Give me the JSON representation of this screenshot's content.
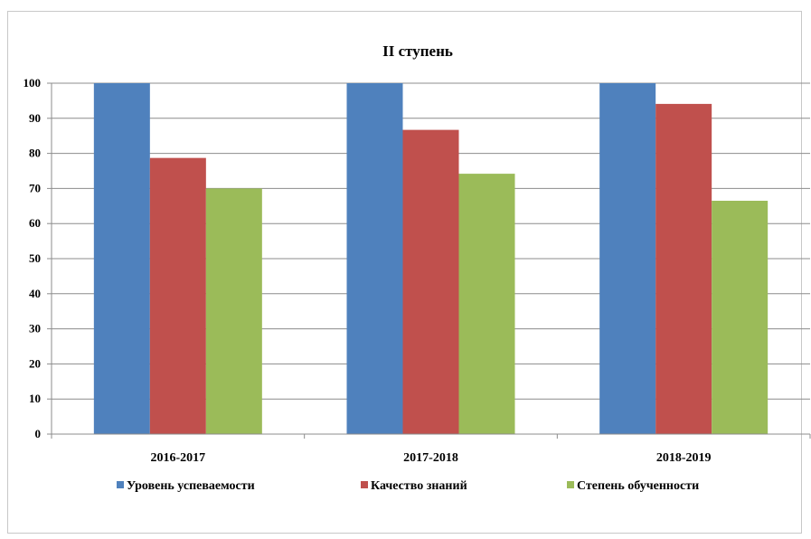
{
  "chart_data": {
    "type": "bar",
    "title": "II  ступень",
    "xlabel": "",
    "ylabel": "",
    "categories": [
      "2016-2017",
      "2017-2018",
      "2018-2019"
    ],
    "series": [
      {
        "name": "Уровень успеваемости",
        "color": "#4F81BD",
        "values": [
          100,
          100,
          100
        ]
      },
      {
        "name": "Качество знаний",
        "color": "#C0504D",
        "values": [
          78.7,
          86.7,
          94.1
        ]
      },
      {
        "name": "Степень обученности",
        "color": "#9BBB59",
        "values": [
          70,
          74.2,
          66.5
        ]
      }
    ],
    "ylim": [
      0,
      100
    ],
    "yticks": [
      0,
      10,
      20,
      30,
      40,
      50,
      60,
      70,
      80,
      90,
      100
    ],
    "grid": true,
    "legend": "bottom"
  }
}
